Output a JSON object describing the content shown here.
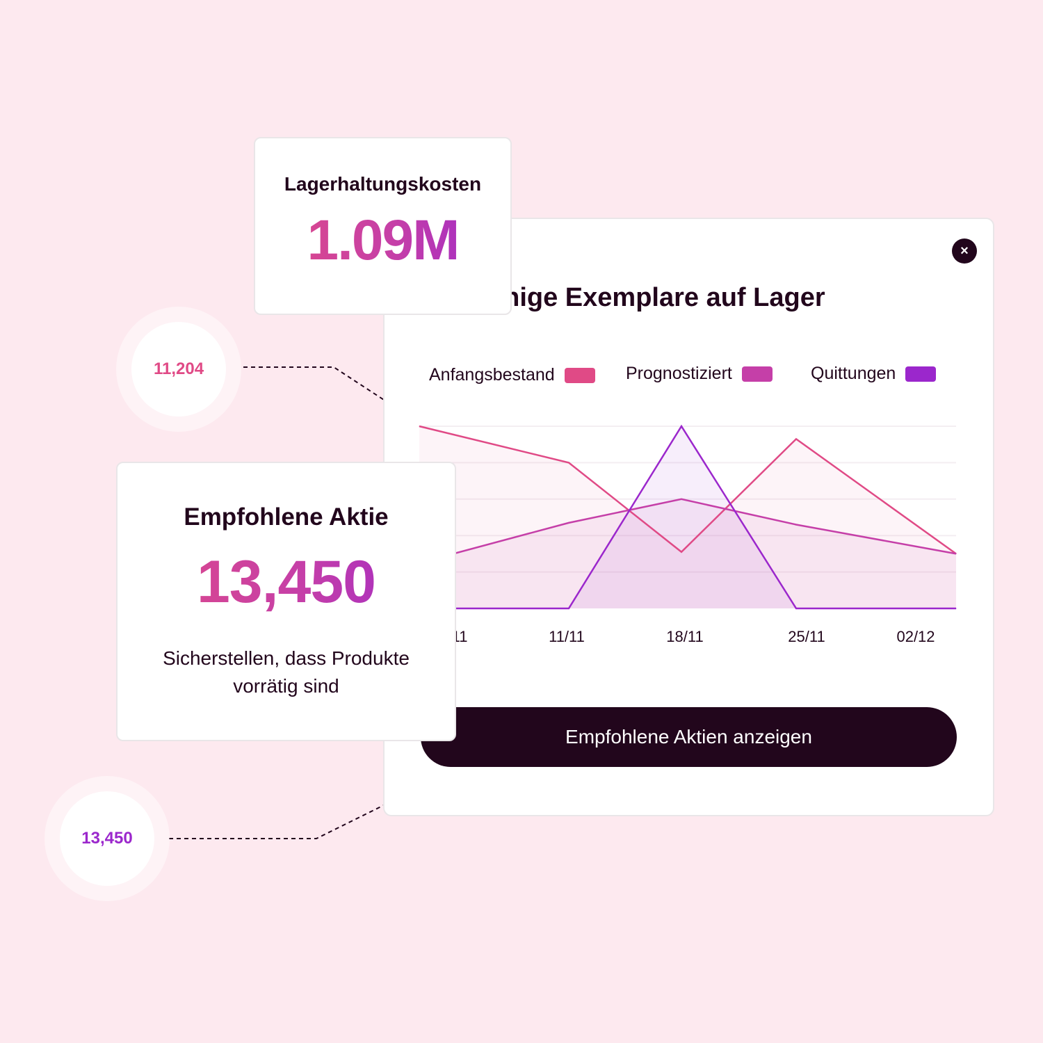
{
  "cost_card": {
    "label": "Lagerhaltungskosten",
    "value": "1.09M"
  },
  "panel": {
    "title": "enige Exemplare auf Lager",
    "close_icon": "close-icon",
    "button_label": "Empfohlene Aktien anzeigen"
  },
  "recommended_card": {
    "label": "Empfohlene Aktie",
    "value": "13,450",
    "description": "Sicherstellen, dass Produkte vorrätig sind"
  },
  "bubbles": [
    {
      "value": "11,204",
      "color": "#e04a86"
    },
    {
      "value": "13,450",
      "color": "#9b27cc"
    }
  ],
  "chart_data": {
    "type": "area",
    "x_labels": [
      "/11",
      "11/11",
      "18/11",
      "25/11",
      "02/12"
    ],
    "ylim": [
      0,
      100
    ],
    "grid": true,
    "legend_position": "top",
    "series": [
      {
        "name": "Anfangsbestand",
        "color": "#e04a86",
        "x": [
          0,
          1,
          2,
          3,
          4
        ],
        "values": [
          100,
          80,
          31,
          93,
          30
        ]
      },
      {
        "name": "Prognostiziert",
        "color": "#c53fa8",
        "x": [
          0,
          1,
          2,
          3,
          4
        ],
        "values": [
          25,
          47,
          60,
          46,
          30
        ]
      },
      {
        "name": "Quittungen",
        "color": "#9b27cc",
        "x": [
          0,
          1,
          1.5,
          2,
          2.5,
          3,
          4
        ],
        "values": [
          0,
          0,
          50,
          100,
          50,
          0,
          0
        ]
      }
    ]
  }
}
